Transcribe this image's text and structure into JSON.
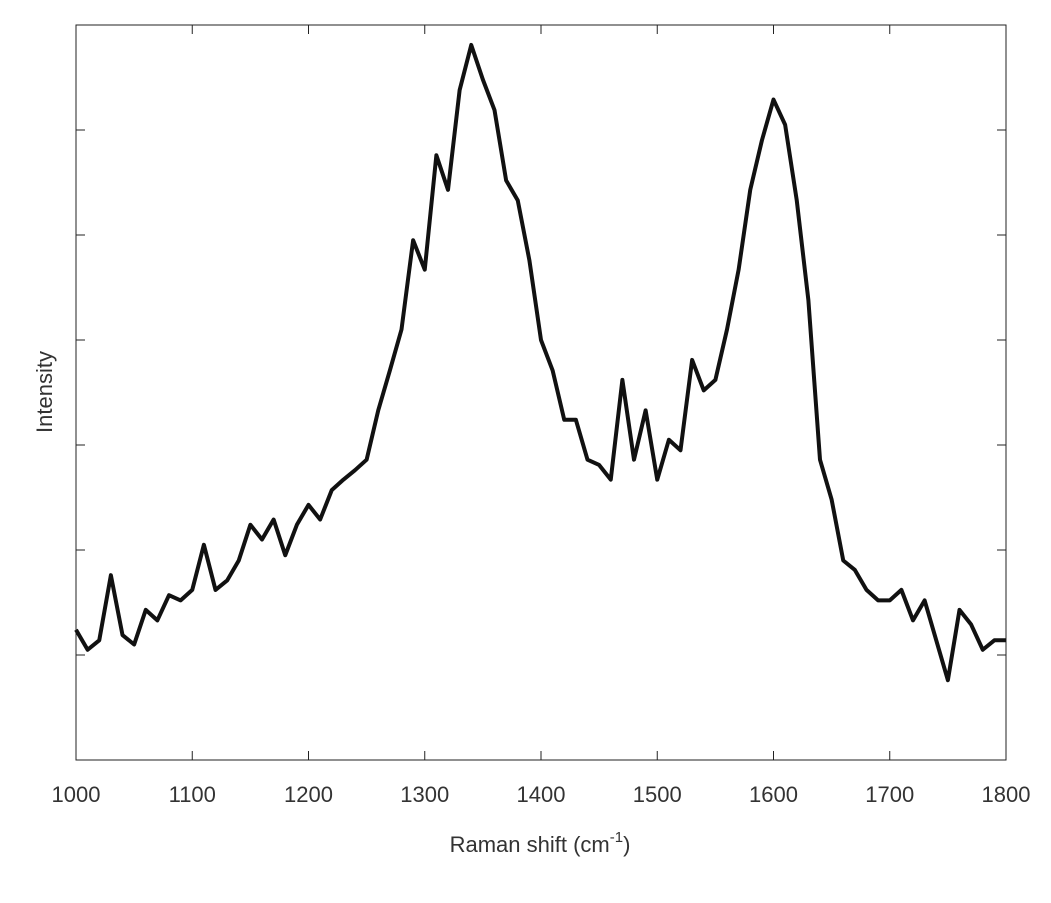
{
  "chart_data": {
    "type": "line",
    "x_label": {
      "text": "Raman shift (cm",
      "superscript": "-1",
      "suffix": ")"
    },
    "y_label": "Intensity",
    "x": [
      1000,
      1010,
      1020,
      1030,
      1040,
      1050,
      1060,
      1070,
      1080,
      1090,
      1100,
      1110,
      1120,
      1130,
      1140,
      1150,
      1160,
      1170,
      1180,
      1190,
      1200,
      1210,
      1220,
      1230,
      1240,
      1250,
      1260,
      1270,
      1280,
      1290,
      1300,
      1310,
      1320,
      1330,
      1340,
      1350,
      1360,
      1370,
      1380,
      1390,
      1400,
      1410,
      1420,
      1430,
      1440,
      1450,
      1460,
      1470,
      1480,
      1490,
      1500,
      1510,
      1520,
      1530,
      1540,
      1550,
      1560,
      1570,
      1580,
      1590,
      1600,
      1610,
      1620,
      1630,
      1640,
      1650,
      1660,
      1670,
      1680,
      1690,
      1700,
      1710,
      1720,
      1730,
      1740,
      1750,
      1760,
      1770,
      1780,
      1790,
      1800
    ],
    "series": [
      {
        "color": "#111111",
        "values": [
          1.24,
          1.05,
          1.14,
          1.76,
          1.19,
          1.1,
          1.43,
          1.33,
          1.57,
          1.52,
          1.62,
          2.05,
          1.62,
          1.71,
          1.9,
          2.24,
          2.1,
          2.29,
          1.95,
          2.24,
          2.43,
          2.29,
          2.57,
          2.67,
          2.76,
          2.86,
          3.33,
          3.71,
          4.1,
          4.95,
          4.67,
          5.76,
          5.43,
          6.38,
          6.81,
          6.48,
          6.19,
          5.52,
          5.33,
          4.76,
          4.0,
          3.71,
          3.24,
          3.24,
          2.86,
          2.81,
          2.67,
          3.62,
          2.86,
          3.33,
          2.67,
          3.05,
          2.95,
          3.81,
          3.52,
          3.62,
          4.1,
          4.67,
          5.43,
          5.9,
          6.29,
          6.05,
          5.33,
          4.38,
          2.86,
          2.48,
          1.9,
          1.81,
          1.62,
          1.52,
          1.52,
          1.62,
          1.33,
          1.52,
          1.14,
          0.76,
          1.43,
          1.29,
          1.05,
          1.14,
          1.14
        ]
      }
    ],
    "xlim": [
      1000,
      1800
    ],
    "xticks": [
      1000,
      1100,
      1200,
      1300,
      1400,
      1500,
      1600,
      1700,
      1800
    ],
    "ylim": [
      0,
      7
    ],
    "yticks": [
      1,
      2,
      3,
      4,
      5,
      6
    ],
    "ytick_labels": false
  }
}
